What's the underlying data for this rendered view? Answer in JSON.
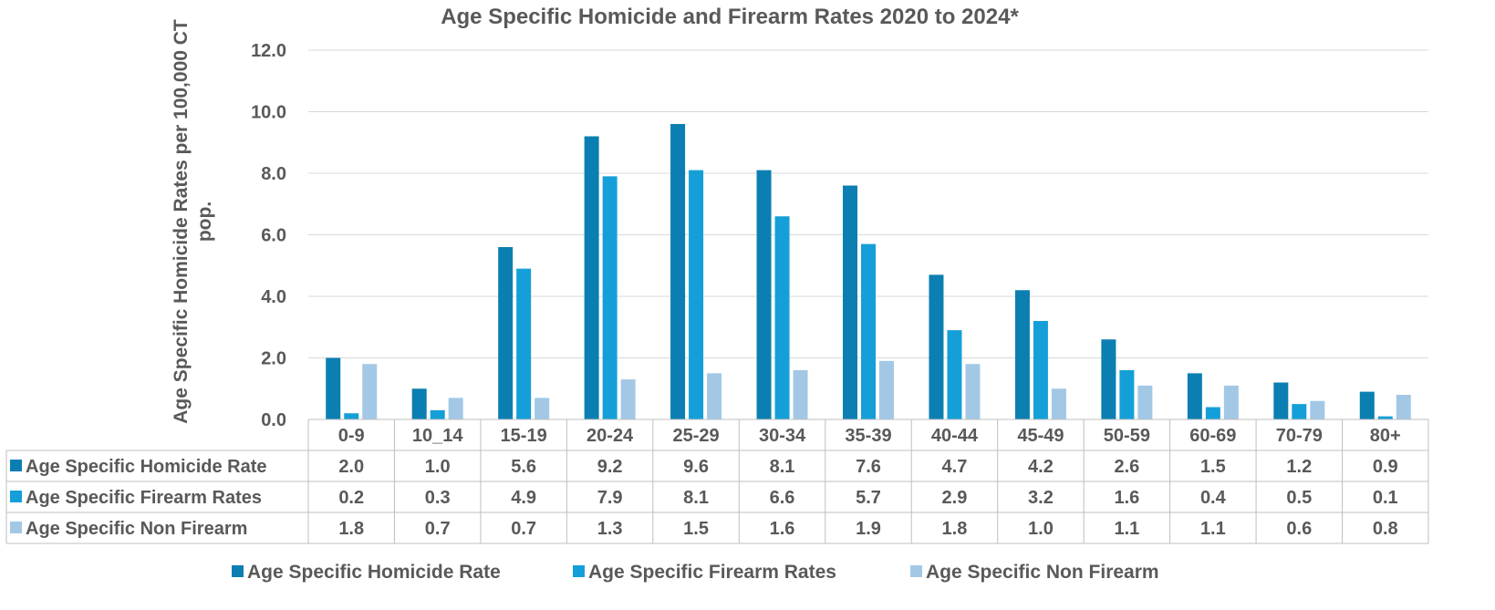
{
  "chart_data": {
    "type": "bar",
    "title": "Age Specific Homicide and Firearm Rates 2020 to 2024*",
    "ylabel_lines": [
      "Age Specific Homicide Rates per 100,000 CT",
      "pop."
    ],
    "xlabel": "",
    "ylim": [
      0,
      12
    ],
    "yticks": [
      "0.0",
      "2.0",
      "4.0",
      "6.0",
      "8.0",
      "10.0",
      "12.0"
    ],
    "grid": true,
    "legend_position": "bottom",
    "categories": [
      "0-9",
      "10_14",
      "15-19",
      "20-24",
      "25-29",
      "30-34",
      "35-39",
      "40-44",
      "45-49",
      "50-59",
      "60-69",
      "70-79",
      "80+"
    ],
    "series": [
      {
        "name": "Age Specific Homicide Rate",
        "color": "#0b7fb1",
        "values": [
          2.0,
          1.0,
          5.6,
          9.2,
          9.6,
          8.1,
          7.6,
          4.7,
          4.2,
          2.6,
          1.5,
          1.2,
          0.9
        ],
        "labels": [
          "2.0",
          "1.0",
          "5.6",
          "9.2",
          "9.6",
          "8.1",
          "7.6",
          "4.7",
          "4.2",
          "2.6",
          "1.5",
          "1.2",
          "0.9"
        ]
      },
      {
        "name": "Age Specific Firearm Rates",
        "color": "#159fd8",
        "values": [
          0.2,
          0.3,
          4.9,
          7.9,
          8.1,
          6.6,
          5.7,
          2.9,
          3.2,
          1.6,
          0.4,
          0.5,
          0.1
        ],
        "labels": [
          "0.2",
          "0.3",
          "4.9",
          "7.9",
          "8.1",
          "6.6",
          "5.7",
          "2.9",
          "3.2",
          "1.6",
          "0.4",
          "0.5",
          "0.1"
        ]
      },
      {
        "name": "Age Specific Non Firearm",
        "color": "#a2c8e6",
        "values": [
          1.8,
          0.7,
          0.7,
          1.3,
          1.5,
          1.6,
          1.9,
          1.8,
          1.0,
          1.1,
          1.1,
          0.6,
          0.8
        ],
        "labels": [
          "1.8",
          "0.7",
          "0.7",
          "1.3",
          "1.5",
          "1.6",
          "1.9",
          "1.8",
          "1.0",
          "1.1",
          "1.1",
          "0.6",
          "0.8"
        ]
      }
    ]
  }
}
